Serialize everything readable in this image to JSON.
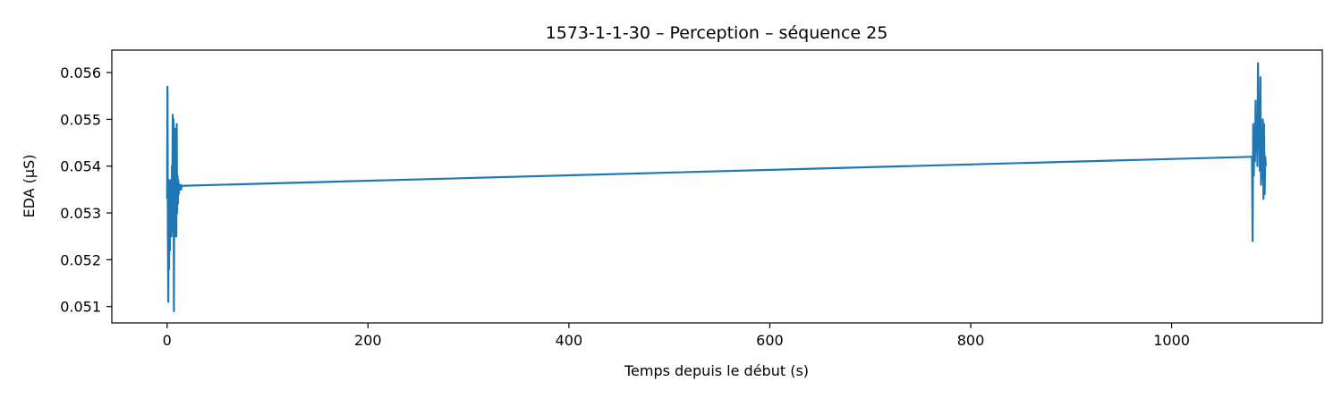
{
  "chart_data": {
    "type": "line",
    "title": "1573-1-1-30 – Perception – séquence 25",
    "xlabel": "Temps depuis le début (s)",
    "ylabel": "EDA (µS)",
    "xlim": [
      -55,
      1150
    ],
    "ylim": [
      0.05065,
      0.05648
    ],
    "x_ticks": [
      0,
      200,
      400,
      600,
      800,
      1000
    ],
    "x_tick_labels": [
      "0",
      "200",
      "400",
      "600",
      "800",
      "1000"
    ],
    "y_ticks": [
      0.051,
      0.052,
      0.053,
      0.054,
      0.055,
      0.056
    ],
    "y_tick_labels": [
      "0.051",
      "0.052",
      "0.053",
      "0.054",
      "0.055",
      "0.056"
    ],
    "grid": false,
    "colors": {
      "line": "#1f77b4"
    },
    "series": [
      {
        "x": [
          0,
          0.4,
          0.8,
          1.2,
          1.6,
          2.0,
          2.4,
          2.8,
          3.2,
          3.6,
          4.0,
          4.4,
          4.8,
          5.2,
          5.6,
          6.0,
          6.4,
          6.8,
          7.2,
          7.6,
          8.0,
          8.4,
          8.8,
          9.2,
          9.6,
          10.0,
          10.4,
          10.8,
          11.2,
          11.6,
          12.0,
          12.4,
          12.8,
          13.2,
          13.6,
          14.0,
          14.4,
          14.8,
          1080.0,
          1080.6,
          1081.2,
          1081.8,
          1082.4,
          1083.0,
          1083.6,
          1084.2,
          1084.8,
          1085.4,
          1086.0,
          1086.6,
          1087.2,
          1087.8,
          1088.4,
          1089.0,
          1089.6,
          1090.2,
          1090.8,
          1091.4,
          1092.0,
          1092.6,
          1093.2,
          1093.8
        ],
        "y": [
          0.0533,
          0.0557,
          0.0526,
          0.0511,
          0.0535,
          0.0518,
          0.0537,
          0.0522,
          0.0534,
          0.0528,
          0.0537,
          0.0525,
          0.054,
          0.053,
          0.0551,
          0.0526,
          0.055,
          0.0509,
          0.054,
          0.0525,
          0.0548,
          0.053,
          0.0539,
          0.0525,
          0.0549,
          0.053,
          0.0538,
          0.0532,
          0.0537,
          0.0534,
          0.0536,
          0.0535,
          0.0536,
          0.0535,
          0.0536,
          0.0535,
          0.05358,
          0.05358,
          0.0542,
          0.0524,
          0.0549,
          0.0538,
          0.0548,
          0.0541,
          0.0554,
          0.0543,
          0.0551,
          0.054,
          0.0562,
          0.0544,
          0.0551,
          0.0539,
          0.0559,
          0.0536,
          0.0548,
          0.0537,
          0.055,
          0.0533,
          0.0549,
          0.0534,
          0.0542,
          0.054
        ]
      }
    ]
  }
}
